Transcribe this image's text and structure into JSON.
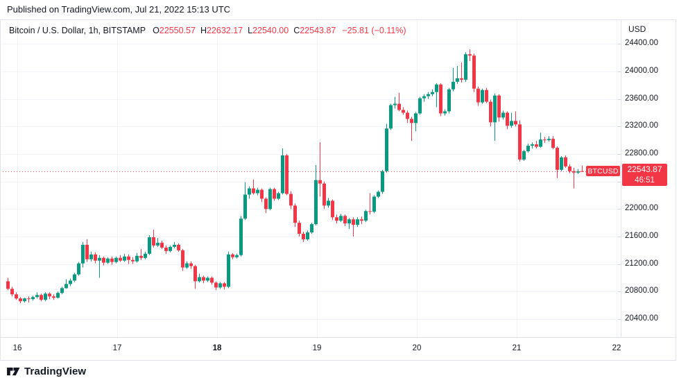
{
  "header": {
    "published": "Published on TradingView.com, Jul 21, 2022 15:13 UTC"
  },
  "legend": {
    "symbol": "Bitcoin / U.S. Dollar, 1h, BITSTAMP",
    "ohlc": [
      {
        "label": "O",
        "value": "22550.57"
      },
      {
        "label": "H",
        "value": "22632.17"
      },
      {
        "label": "L",
        "value": "22540.00"
      },
      {
        "label": "C",
        "value": "22543.87"
      }
    ],
    "change": "−25.81 (−0.11%)"
  },
  "price_axis": {
    "currency": "USD",
    "label": {
      "price": "22543.87",
      "countdown": "46:51"
    }
  },
  "pill": {
    "text": "BTCUSD"
  },
  "footer": {
    "brand": "TradingView"
  },
  "colors": {
    "up": "#089981",
    "down": "#f23645",
    "accent_red": "#f23645",
    "text": "#131722",
    "grid": "#f0f3fa",
    "border": "#e0e3eb"
  },
  "chart_data": {
    "type": "candlestick",
    "title": "Bitcoin / U.S. Dollar",
    "symbol": "BTCUSD",
    "exchange": "BITSTAMP",
    "interval": "1h",
    "quote_currency": "USD",
    "current_price": 22543.87,
    "current_candle_ohlc": {
      "open": 22550.57,
      "high": 22632.17,
      "low": 22540.0,
      "close": 22543.87
    },
    "change": "−25.81 (−0.11%)",
    "countdown": "46:51",
    "y_range": [
      20400,
      24400
    ],
    "price_ticks": [
      20400,
      20800,
      21200,
      21600,
      22000,
      22400,
      22800,
      23200,
      23600,
      24000,
      24400
    ],
    "day_labels": [
      {
        "text": "16",
        "bold": false
      },
      {
        "text": "17",
        "bold": false
      },
      {
        "text": "18",
        "bold": true
      },
      {
        "text": "19",
        "bold": false
      },
      {
        "text": "20",
        "bold": false
      },
      {
        "text": "21",
        "bold": false
      },
      {
        "text": "22",
        "bold": false
      }
    ],
    "grid": true,
    "legend_position": "top-left",
    "candles": [
      [
        20950,
        21000,
        20820,
        20840
      ],
      [
        20840,
        20870,
        20730,
        20760
      ],
      [
        20760,
        20790,
        20680,
        20700
      ],
      [
        20700,
        20720,
        20630,
        20660
      ],
      [
        20660,
        20710,
        20640,
        20700
      ],
      [
        20700,
        20730,
        20640,
        20690
      ],
      [
        20690,
        20740,
        20670,
        20720
      ],
      [
        20720,
        20790,
        20700,
        20750
      ],
      [
        20750,
        20770,
        20660,
        20680
      ],
      [
        20680,
        20790,
        20660,
        20770
      ],
      [
        20770,
        20790,
        20690,
        20730
      ],
      [
        20730,
        20760,
        20680,
        20710
      ],
      [
        20710,
        20800,
        20700,
        20780
      ],
      [
        20780,
        20870,
        20760,
        20850
      ],
      [
        20850,
        20980,
        20840,
        20910
      ],
      [
        20910,
        20990,
        20880,
        20960
      ],
      [
        20960,
        21070,
        20940,
        21050
      ],
      [
        21050,
        21230,
        21030,
        21210
      ],
      [
        21210,
        21520,
        21150,
        21480
      ],
      [
        21480,
        21560,
        21230,
        21270
      ],
      [
        21270,
        21380,
        21240,
        21340
      ],
      [
        21340,
        21370,
        21210,
        21250
      ],
      [
        21250,
        21330,
        21000,
        21290
      ],
      [
        21290,
        21310,
        21180,
        21220
      ],
      [
        21220,
        21300,
        21200,
        21280
      ],
      [
        21280,
        21310,
        21190,
        21230
      ],
      [
        21230,
        21310,
        21210,
        21290
      ],
      [
        21290,
        21330,
        21230,
        21250
      ],
      [
        21250,
        21350,
        21230,
        21310
      ],
      [
        21310,
        21340,
        21200,
        21260
      ],
      [
        21260,
        21300,
        21200,
        21240
      ],
      [
        21240,
        21360,
        21220,
        21320
      ],
      [
        21320,
        21420,
        21260,
        21290
      ],
      [
        21290,
        21380,
        21270,
        21350
      ],
      [
        21350,
        21620,
        21330,
        21590
      ],
      [
        21590,
        21700,
        21440,
        21470
      ],
      [
        21470,
        21580,
        21450,
        21510
      ],
      [
        21510,
        21540,
        21420,
        21440
      ],
      [
        21440,
        21470,
        21350,
        21390
      ],
      [
        21390,
        21470,
        21370,
        21450
      ],
      [
        21450,
        21520,
        21430,
        21480
      ],
      [
        21480,
        21500,
        21380,
        21400
      ],
      [
        21400,
        21420,
        21100,
        21150
      ],
      [
        21150,
        21240,
        21130,
        21210
      ],
      [
        21210,
        21240,
        21130,
        21170
      ],
      [
        21170,
        21190,
        20840,
        20950
      ],
      [
        20950,
        21060,
        20930,
        21010
      ],
      [
        21010,
        21030,
        20920,
        20960
      ],
      [
        20960,
        21020,
        20940,
        21000
      ],
      [
        21000,
        21020,
        20900,
        20930
      ],
      [
        20930,
        20950,
        20820,
        20860
      ],
      [
        20860,
        20940,
        20840,
        20920
      ],
      [
        20920,
        20940,
        20830,
        20870
      ],
      [
        20870,
        21380,
        20850,
        21340
      ],
      [
        21340,
        21360,
        21270,
        21300
      ],
      [
        21300,
        21350,
        21280,
        21330
      ],
      [
        21330,
        21900,
        21310,
        21860
      ],
      [
        21860,
        22390,
        21840,
        22210
      ],
      [
        22210,
        22330,
        22150,
        22300
      ],
      [
        22300,
        22430,
        22210,
        22230
      ],
      [
        22230,
        22310,
        22200,
        22280
      ],
      [
        22280,
        22300,
        22100,
        22150
      ],
      [
        22150,
        22170,
        21940,
        22000
      ],
      [
        22000,
        22310,
        21980,
        22290
      ],
      [
        22290,
        22310,
        22120,
        22150
      ],
      [
        22150,
        22250,
        22130,
        22230
      ],
      [
        22230,
        22880,
        22210,
        22780
      ],
      [
        22780,
        22800,
        22200,
        22220
      ],
      [
        22220,
        22260,
        22000,
        22050
      ],
      [
        22050,
        22080,
        21740,
        21800
      ],
      [
        21800,
        21830,
        21600,
        21640
      ],
      [
        21640,
        21670,
        21520,
        21560
      ],
      [
        21560,
        21690,
        21540,
        21660
      ],
      [
        21660,
        21800,
        21640,
        21780
      ],
      [
        21780,
        22640,
        21760,
        22420
      ],
      [
        22420,
        22970,
        22180,
        22370
      ],
      [
        22370,
        22400,
        22000,
        22050
      ],
      [
        22050,
        22160,
        22020,
        22120
      ],
      [
        22120,
        22140,
        21840,
        21880
      ],
      [
        21880,
        21920,
        21790,
        21830
      ],
      [
        21830,
        21930,
        21810,
        21900
      ],
      [
        21900,
        21920,
        21750,
        21790
      ],
      [
        21790,
        21870,
        21710,
        21850
      ],
      [
        21850,
        21880,
        21600,
        21770
      ],
      [
        21770,
        21880,
        21740,
        21850
      ],
      [
        21850,
        21890,
        21780,
        21830
      ],
      [
        21830,
        21990,
        21810,
        21970
      ],
      [
        21970,
        22230,
        21920,
        21960
      ],
      [
        21960,
        22200,
        21940,
        22180
      ],
      [
        22180,
        22270,
        22160,
        22250
      ],
      [
        22250,
        22570,
        22220,
        22550
      ],
      [
        22550,
        23240,
        22530,
        23170
      ],
      [
        23170,
        23530,
        23150,
        23510
      ],
      [
        23510,
        23630,
        23460,
        23530
      ],
      [
        23530,
        23690,
        23420,
        23440
      ],
      [
        23440,
        23480,
        23370,
        23400
      ],
      [
        23400,
        23430,
        23250,
        23310
      ],
      [
        23310,
        23340,
        22990,
        23250
      ],
      [
        23250,
        23410,
        23130,
        23390
      ],
      [
        23390,
        23630,
        23370,
        23610
      ],
      [
        23610,
        23670,
        23560,
        23640
      ],
      [
        23640,
        23700,
        23600,
        23670
      ],
      [
        23670,
        23740,
        23640,
        23700
      ],
      [
        23700,
        23830,
        23480,
        23810
      ],
      [
        23810,
        23830,
        23350,
        23390
      ],
      [
        23390,
        23450,
        23360,
        23420
      ],
      [
        23420,
        23760,
        23390,
        23740
      ],
      [
        23740,
        24050,
        23710,
        23850
      ],
      [
        23850,
        24080,
        23820,
        23900
      ],
      [
        23900,
        24130,
        23840,
        23880
      ],
      [
        23880,
        24280,
        23850,
        24250
      ],
      [
        24250,
        24320,
        24150,
        24230
      ],
      [
        24230,
        24260,
        23700,
        23750
      ],
      [
        23750,
        23780,
        23500,
        23550
      ],
      [
        23550,
        23750,
        23530,
        23730
      ],
      [
        23730,
        23760,
        23540,
        23560
      ],
      [
        23560,
        23590,
        23200,
        23260
      ],
      [
        23260,
        23680,
        22990,
        23650
      ],
      [
        23650,
        23670,
        23270,
        23330
      ],
      [
        23330,
        23430,
        23300,
        23400
      ],
      [
        23400,
        23420,
        23160,
        23210
      ],
      [
        23210,
        23400,
        23180,
        23280
      ],
      [
        23280,
        23420,
        23200,
        23230
      ],
      [
        23230,
        23290,
        22690,
        22720
      ],
      [
        22720,
        22860,
        22700,
        22840
      ],
      [
        22840,
        22950,
        22820,
        22920
      ],
      [
        22920,
        22970,
        22880,
        22940
      ],
      [
        22940,
        22990,
        22880,
        22905
      ],
      [
        22905,
        23110,
        22890,
        23010
      ],
      [
        23010,
        23050,
        22960,
        23000
      ],
      [
        23000,
        23060,
        22980,
        23020
      ],
      [
        23020,
        23060,
        22870,
        22890
      ],
      [
        22890,
        22910,
        22450,
        22570
      ],
      [
        22570,
        22770,
        22550,
        22750
      ],
      [
        22750,
        22780,
        22600,
        22620
      ],
      [
        22620,
        22650,
        22520,
        22550
      ],
      [
        22550,
        22600,
        22300,
        22530
      ],
      [
        22530,
        22580,
        22510,
        22548
      ],
      [
        22550.57,
        22632.17,
        22540.0,
        22543.87
      ]
    ]
  }
}
